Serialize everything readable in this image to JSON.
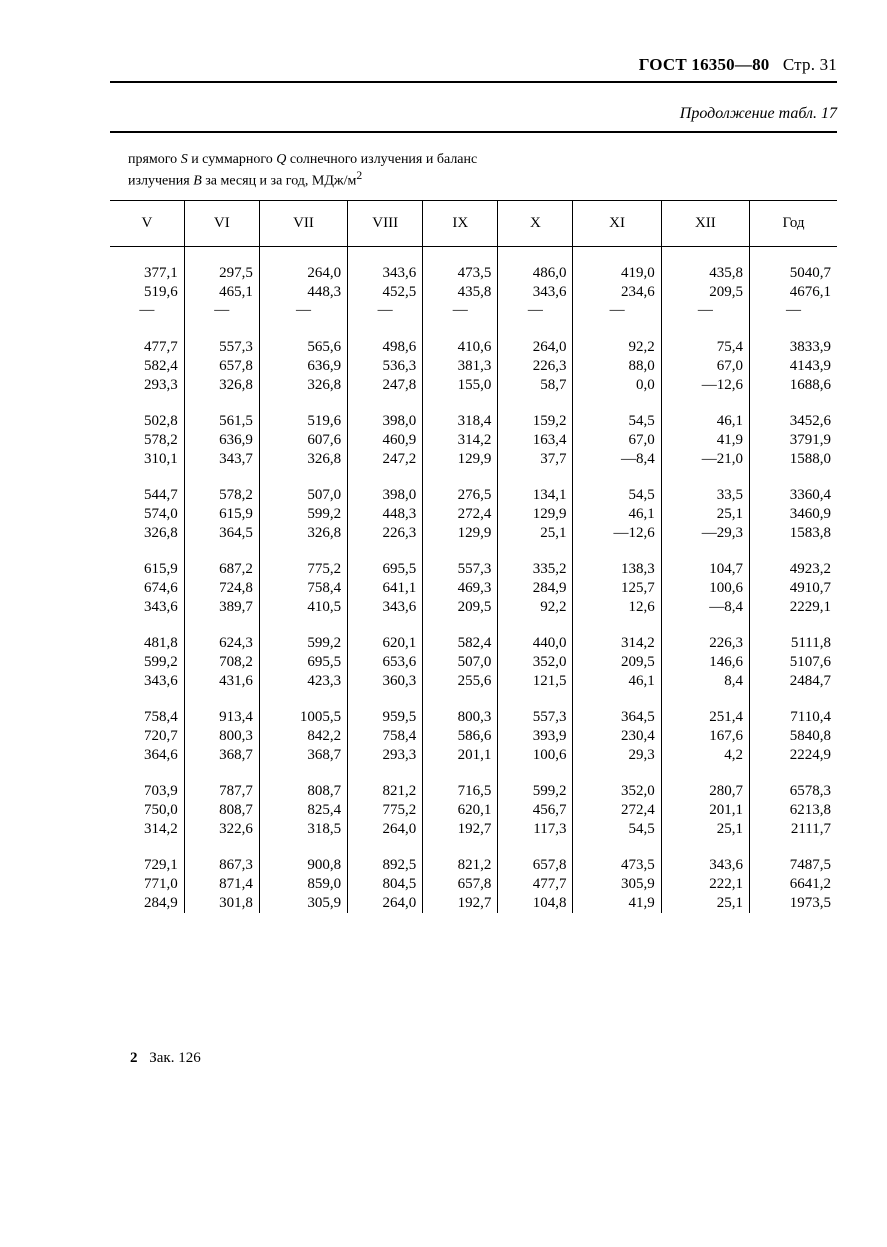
{
  "header": {
    "standard": "ГОСТ 16350—80",
    "page_label": "Стр. 31"
  },
  "continuation": "Продолжение табл. 17",
  "caption": {
    "line1_a": "прямого ",
    "line1_s": "S",
    "line1_b": " и суммарного ",
    "line1_q": "Q",
    "line1_c": " солнечного излучения и баланс",
    "line2_a": "излучения ",
    "line2_b": "B",
    "line2_c": " за месяц и за год, МДж/м",
    "line2_sup": "2"
  },
  "table": {
    "columns": [
      "V",
      "VI",
      "VII",
      "VIII",
      "IX",
      "X",
      "XI",
      "XII",
      "Год"
    ],
    "dash": "—",
    "groups": [
      {
        "rows": [
          [
            "377,1",
            "297,5",
            "264,0",
            "343,6",
            "473,5",
            "486,0",
            "419,0",
            "435,8",
            "5040,7"
          ],
          [
            "519,6",
            "465,1",
            "448,3",
            "452,5",
            "435,8",
            "343,6",
            "234,6",
            "209,5",
            "4676,1"
          ]
        ],
        "dash_row": true
      },
      {
        "rows": [
          [
            "477,7",
            "557,3",
            "565,6",
            "498,6",
            "410,6",
            "264,0",
            "92,2",
            "75,4",
            "3833,9"
          ],
          [
            "582,4",
            "657,8",
            "636,9",
            "536,3",
            "381,3",
            "226,3",
            "88,0",
            "67,0",
            "4143,9"
          ],
          [
            "293,3",
            "326,8",
            "326,8",
            "247,8",
            "155,0",
            "58,7",
            "0,0",
            "—12,6",
            "1688,6"
          ]
        ]
      },
      {
        "rows": [
          [
            "502,8",
            "561,5",
            "519,6",
            "398,0",
            "318,4",
            "159,2",
            "54,5",
            "46,1",
            "3452,6"
          ],
          [
            "578,2",
            "636,9",
            "607,6",
            "460,9",
            "314,2",
            "163,4",
            "67,0",
            "41,9",
            "3791,9"
          ],
          [
            "310,1",
            "343,7",
            "326,8",
            "247,2",
            "129,9",
            "37,7",
            "—8,4",
            "—21,0",
            "1588,0"
          ]
        ]
      },
      {
        "rows": [
          [
            "544,7",
            "578,2",
            "507,0",
            "398,0",
            "276,5",
            "134,1",
            "54,5",
            "33,5",
            "3360,4"
          ],
          [
            "574,0",
            "615,9",
            "599,2",
            "448,3",
            "272,4",
            "129,9",
            "46,1",
            "25,1",
            "3460,9"
          ],
          [
            "326,8",
            "364,5",
            "326,8",
            "226,3",
            "129,9",
            "25,1",
            "—12,6",
            "—29,3",
            "1583,8"
          ]
        ]
      },
      {
        "rows": [
          [
            "615,9",
            "687,2",
            "775,2",
            "695,5",
            "557,3",
            "335,2",
            "138,3",
            "104,7",
            "4923,2"
          ],
          [
            "674,6",
            "724,8",
            "758,4",
            "641,1",
            "469,3",
            "284,9",
            "125,7",
            "100,6",
            "4910,7"
          ],
          [
            "343,6",
            "389,7",
            "410,5",
            "343,6",
            "209,5",
            "92,2",
            "12,6",
            "—8,4",
            "2229,1"
          ]
        ]
      },
      {
        "rows": [
          [
            "481,8",
            "624,3",
            "599,2",
            "620,1",
            "582,4",
            "440,0",
            "314,2",
            "226,3",
            "5111,8"
          ],
          [
            "599,2",
            "708,2",
            "695,5",
            "653,6",
            "507,0",
            "352,0",
            "209,5",
            "146,6",
            "5107,6"
          ],
          [
            "343,6",
            "431,6",
            "423,3",
            "360,3",
            "255,6",
            "121,5",
            "46,1",
            "8,4",
            "2484,7"
          ]
        ]
      },
      {
        "rows": [
          [
            "758,4",
            "913,4",
            "1005,5",
            "959,5",
            "800,3",
            "557,3",
            "364,5",
            "251,4",
            "7110,4"
          ],
          [
            "720,7",
            "800,3",
            "842,2",
            "758,4",
            "586,6",
            "393,9",
            "230,4",
            "167,6",
            "5840,8"
          ],
          [
            "364,6",
            "368,7",
            "368,7",
            "293,3",
            "201,1",
            "100,6",
            "29,3",
            "4,2",
            "2224,9"
          ]
        ]
      },
      {
        "rows": [
          [
            "703,9",
            "787,7",
            "808,7",
            "821,2",
            "716,5",
            "599,2",
            "352,0",
            "280,7",
            "6578,3"
          ],
          [
            "750,0",
            "808,7",
            "825,4",
            "775,2",
            "620,1",
            "456,7",
            "272,4",
            "201,1",
            "6213,8"
          ],
          [
            "314,2",
            "322,6",
            "318,5",
            "264,0",
            "192,7",
            "117,3",
            "54,5",
            "25,1",
            "2111,7"
          ]
        ]
      },
      {
        "rows": [
          [
            "729,1",
            "867,3",
            "900,8",
            "892,5",
            "821,2",
            "657,8",
            "473,5",
            "343,6",
            "7487,5"
          ],
          [
            "771,0",
            "871,4",
            "859,0",
            "804,5",
            "657,8",
            "477,7",
            "305,9",
            "222,1",
            "6641,2"
          ],
          [
            "284,9",
            "301,8",
            "305,9",
            "264,0",
            "192,7",
            "104,8",
            "41,9",
            "25,1",
            "1973,5"
          ]
        ]
      }
    ]
  },
  "footer": {
    "num": "2",
    "text": "Зак. 126"
  }
}
